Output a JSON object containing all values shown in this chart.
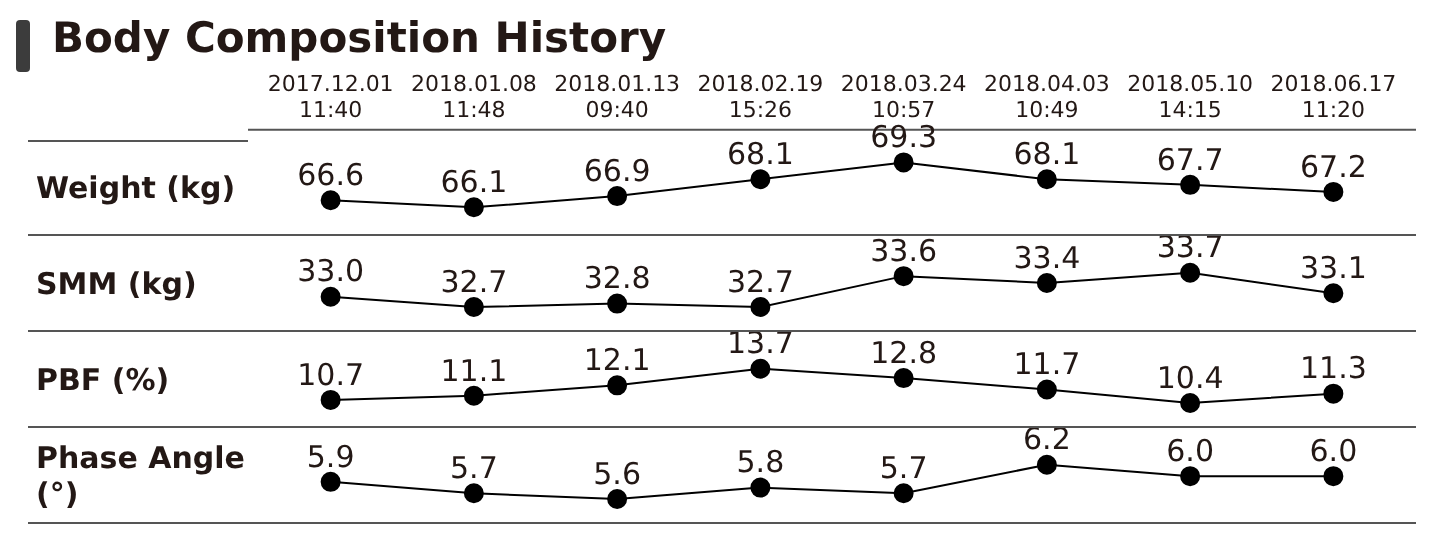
{
  "chart_data": [
    {
      "type": "line",
      "title": "Body Composition History",
      "ylabel": "Weight (kg)",
      "categories": [
        "2017.12.01 11:40",
        "2018.01.08 11:48",
        "2018.01.13 09:40",
        "2018.02.19 15:26",
        "2018.03.24 10:57",
        "2018.04.03 10:49",
        "2018.05.10 14:15",
        "2018.06.17 11:20"
      ],
      "values": [
        66.6,
        66.1,
        66.9,
        68.1,
        69.3,
        68.1,
        67.7,
        67.2
      ],
      "value_labels": [
        "66.6",
        "66.1",
        "66.9",
        "68.1",
        "69.3",
        "68.1",
        "67.7",
        "67.2"
      ],
      "color": "#000000",
      "marker": "circle",
      "grid": false,
      "tick_labels": "x"
    },
    {
      "type": "line",
      "ylabel": "SMM (kg)",
      "categories": [
        null,
        null,
        null,
        null,
        null,
        null,
        null,
        null
      ],
      "values": [
        33.0,
        32.7,
        32.8,
        32.7,
        33.6,
        33.4,
        33.7,
        33.1
      ],
      "value_labels": [
        "33.0",
        "32.7",
        "32.8",
        "32.7",
        "33.6",
        "33.4",
        "33.7",
        "33.1"
      ],
      "color": "#000000",
      "marker": "circle",
      "grid": false,
      "tick_labels": false
    },
    {
      "type": "line",
      "ylabel": "PBF (%)",
      "categories": [
        null,
        null,
        null,
        null,
        null,
        null,
        null,
        null
      ],
      "values": [
        10.7,
        11.1,
        12.1,
        13.7,
        12.8,
        11.7,
        10.4,
        11.3
      ],
      "value_labels": [
        "10.7",
        "11.1",
        "12.1",
        "13.7",
        "12.8",
        "11.7",
        "10.4",
        "11.3"
      ],
      "color": "#000000",
      "marker": "circle",
      "grid": false,
      "tick_labels": false
    },
    {
      "type": "line",
      "ylabel": "Phase Angle (°)",
      "categories": [
        null,
        null,
        null,
        null,
        null,
        null,
        null,
        null
      ],
      "values": [
        5.9,
        5.7,
        5.6,
        5.8,
        5.7,
        6.2,
        6.0,
        6.0
      ],
      "value_labels": [
        "5.9",
        "5.7",
        "5.6",
        "5.8",
        "5.7",
        "6.2",
        "6.0",
        "6.0"
      ],
      "color": "#000000",
      "marker": "circle",
      "grid": false,
      "tick_labels": false
    }
  ]
}
